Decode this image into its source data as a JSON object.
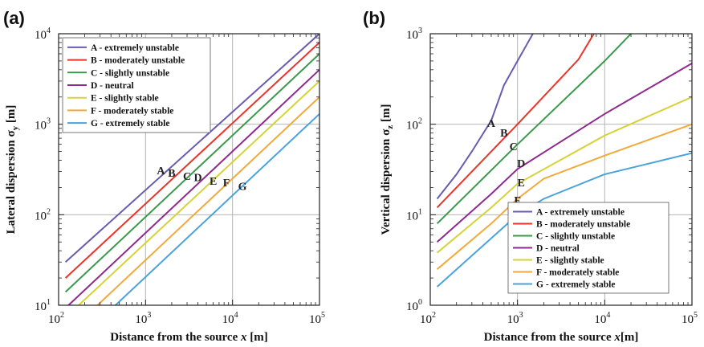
{
  "colors": {
    "A": "#6b5bb0",
    "B": "#e8352a",
    "C": "#3a9a4c",
    "D": "#8e2a8e",
    "E": "#d6d23a",
    "F": "#f2a93b",
    "G": "#4aa3dd"
  },
  "chart_data": [
    {
      "type": "line",
      "panel_label": "(a)",
      "xlabel_main": "Distance from the source ",
      "xlabel_italic": "x",
      "xlabel_unit": " [m]",
      "ylabel_main": "Lateral dispersion σ",
      "ylabel_sub": "y",
      "ylabel_unit": " [m]",
      "xscale": "log",
      "yscale": "log",
      "xlim": [
        100,
        100000
      ],
      "ylim": [
        10,
        10000
      ],
      "xticks": [
        {
          "value": 100,
          "base": "10",
          "exp": "2"
        },
        {
          "value": 1000,
          "base": "10",
          "exp": "3"
        },
        {
          "value": 10000,
          "base": "10",
          "exp": "4"
        },
        {
          "value": 100000,
          "base": "10",
          "exp": "5"
        }
      ],
      "yticks": [
        {
          "value": 10,
          "base": "10",
          "exp": "1"
        },
        {
          "value": 100,
          "base": "10",
          "exp": "2"
        },
        {
          "value": 1000,
          "base": "10",
          "exp": "3"
        },
        {
          "value": 10000,
          "base": "10",
          "exp": "4"
        }
      ],
      "grid": true,
      "legend_position": "top-left",
      "series": [
        {
          "key": "A",
          "name": "A - extremely unstable",
          "x": [
            120,
            100000
          ],
          "y": [
            30,
            10000
          ]
        },
        {
          "key": "B",
          "name": "B - moderately unstable",
          "x": [
            120,
            100000
          ],
          "y": [
            20,
            8000
          ]
        },
        {
          "key": "C",
          "name": "C - slightly unstable",
          "x": [
            120,
            100000
          ],
          "y": [
            14,
            6000
          ]
        },
        {
          "key": "D",
          "name": "D - neutral",
          "x": [
            130,
            100000
          ],
          "y": [
            10,
            4000
          ]
        },
        {
          "key": "E",
          "name": "E - slightly stable",
          "x": [
            170,
            100000
          ],
          "y": [
            10,
            3000
          ]
        },
        {
          "key": "F",
          "name": "F - moderately stable",
          "x": [
            280,
            100000
          ],
          "y": [
            10,
            2000
          ]
        },
        {
          "key": "G",
          "name": "G - extremely stable",
          "x": [
            450,
            100000
          ],
          "y": [
            10,
            1300
          ]
        }
      ],
      "annotations": [
        {
          "text": "A",
          "x": 1500,
          "y": 300
        },
        {
          "text": "B",
          "x": 2000,
          "y": 280
        },
        {
          "text": "C",
          "x": 3000,
          "y": 260
        },
        {
          "text": "D",
          "x": 4000,
          "y": 250
        },
        {
          "text": "E",
          "x": 6000,
          "y": 230
        },
        {
          "text": "F",
          "x": 8500,
          "y": 220
        },
        {
          "text": "G",
          "x": 13000,
          "y": 200
        }
      ]
    },
    {
      "type": "line",
      "panel_label": "(b)",
      "xlabel_main": "Distance from the source ",
      "xlabel_italic": "x",
      "xlabel_unit": "[m]",
      "ylabel_main": "Vertical dispersion σ",
      "ylabel_sub": "z",
      "ylabel_unit": " [m]",
      "xscale": "log",
      "yscale": "log",
      "xlim": [
        100,
        100000
      ],
      "ylim": [
        1,
        1000
      ],
      "xticks": [
        {
          "value": 100,
          "base": "10",
          "exp": "2"
        },
        {
          "value": 1000,
          "base": "10",
          "exp": "3"
        },
        {
          "value": 10000,
          "base": "10",
          "exp": "4"
        },
        {
          "value": 100000,
          "base": "10",
          "exp": "5"
        }
      ],
      "yticks": [
        {
          "value": 1,
          "base": "10",
          "exp": "0"
        },
        {
          "value": 10,
          "base": "10",
          "exp": "1"
        },
        {
          "value": 100,
          "base": "10",
          "exp": "2"
        },
        {
          "value": 1000,
          "base": "10",
          "exp": "3"
        }
      ],
      "grid": true,
      "legend_position": "bottom-right",
      "series": [
        {
          "key": "A",
          "name": "A - extremely unstable",
          "x": [
            120,
            200,
            300,
            500,
            700,
            1000,
            1500
          ],
          "y": [
            15,
            28,
            50,
            110,
            270,
            500,
            1000
          ]
        },
        {
          "key": "B",
          "name": "B - moderately unstable",
          "x": [
            120,
            500,
            1000,
            5000,
            7500
          ],
          "y": [
            12,
            50,
            100,
            520,
            1000
          ]
        },
        {
          "key": "C",
          "name": "C - slightly unstable",
          "x": [
            120,
            1000,
            10000,
            20000
          ],
          "y": [
            8,
            60,
            500,
            1000
          ]
        },
        {
          "key": "D",
          "name": "D - neutral",
          "x": [
            120,
            500,
            1000,
            10000,
            100000
          ],
          "y": [
            5,
            17,
            32,
            130,
            470
          ]
        },
        {
          "key": "E",
          "name": "E - slightly stable",
          "x": [
            120,
            500,
            1000,
            10000,
            100000
          ],
          "y": [
            3.8,
            12,
            22,
            75,
            200
          ]
        },
        {
          "key": "F",
          "name": "F - moderately stable",
          "x": [
            120,
            500,
            1000,
            2000,
            10000,
            100000
          ],
          "y": [
            2.5,
            8,
            15,
            25,
            45,
            100
          ]
        },
        {
          "key": "G",
          "name": "G - extremely stable",
          "x": [
            120,
            500,
            1000,
            2000,
            10000,
            100000
          ],
          "y": [
            1.6,
            5.5,
            10,
            15,
            28,
            48
          ]
        }
      ],
      "annotations": [
        {
          "text": "A",
          "x": 500,
          "y": 100
        },
        {
          "text": "B",
          "x": 700,
          "y": 78
        },
        {
          "text": "C",
          "x": 900,
          "y": 55
        },
        {
          "text": "D",
          "x": 1100,
          "y": 36
        },
        {
          "text": "E",
          "x": 1100,
          "y": 22
        },
        {
          "text": "F",
          "x": 1000,
          "y": 14
        },
        {
          "text": "G",
          "x": 1000,
          "y": 9
        }
      ]
    }
  ]
}
